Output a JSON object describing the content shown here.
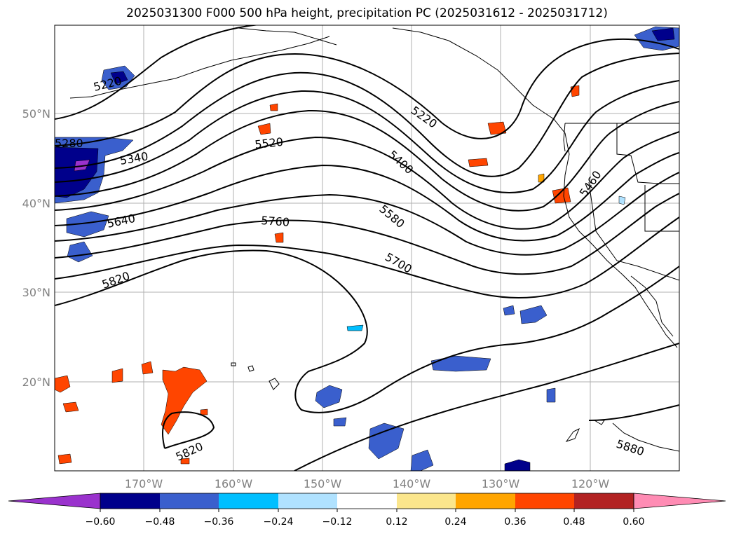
{
  "title": "2025031300 F000 500 hPa height, precipitation PC (2025031612 - 2025031712)",
  "map": {
    "lat_labels": [
      "50°N",
      "40°N",
      "30°N",
      "20°N"
    ],
    "lon_labels": [
      "170°W",
      "160°W",
      "150°W",
      "140°W",
      "130°W",
      "120°W"
    ],
    "contour_labels": [
      "5220",
      "5220",
      "5280",
      "5340",
      "5520",
      "5400",
      "5460",
      "5580",
      "5640",
      "5760",
      "5700",
      "5820",
      "5820",
      "5880"
    ]
  },
  "colorbar": {
    "tick_labels": [
      "−0.60",
      "−0.48",
      "−0.36",
      "−0.24",
      "−0.12",
      "0.12",
      "0.24",
      "0.36",
      "0.48",
      "0.60"
    ],
    "colors": [
      "#9a32cd",
      "#00008b",
      "#3a5fcd",
      "#00bfff",
      "#b0e2ff",
      "#ffffff",
      "#fbe68c",
      "#ffa500",
      "#ff4500",
      "#b22222",
      "#ff8cb4"
    ]
  },
  "chart_data": {
    "type": "contour map",
    "title": "2025031300 F000 500 hPa height, precipitation PC (2025031612 - 2025031712)",
    "x_ticks": [
      "170°W",
      "160°W",
      "150°W",
      "140°W",
      "130°W",
      "120°W"
    ],
    "y_ticks": [
      "50°N",
      "40°N",
      "30°N",
      "20°N"
    ],
    "contour_levels_labeled": [
      5220,
      5280,
      5340,
      5400,
      5460,
      5520,
      5580,
      5640,
      5700,
      5760,
      5820,
      5880
    ],
    "colorbar_levels": [
      -0.6,
      -0.48,
      -0.36,
      -0.24,
      -0.12,
      0.12,
      0.24,
      0.36,
      0.48,
      0.6
    ],
    "colorbar_extend": "both",
    "grid": true
  }
}
